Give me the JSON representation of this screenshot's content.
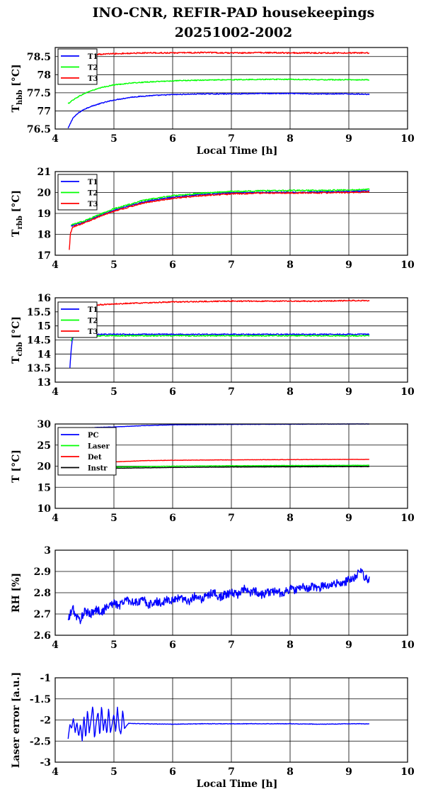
{
  "figure": {
    "title_line1": "INO-CNR, REFIR-PAD housekeepings",
    "title_line2": "20251002-2002"
  },
  "chart_data": [
    {
      "type": "line",
      "ylabel": "T",
      "ylabel_sub": "hbb",
      "ylabel_unit": "[°C]",
      "xlabel": "Local Time [h]",
      "xlim": [
        4,
        10
      ],
      "ylim": [
        76.5,
        78.75
      ],
      "xticks": [
        "4",
        "5",
        "6",
        "7",
        "8",
        "9",
        "10"
      ],
      "yticks": [
        "76.5",
        "77",
        "77.5",
        "78",
        "78.5"
      ],
      "ytick_values": [
        76.5,
        77,
        77.5,
        78,
        78.5
      ],
      "grid": true,
      "legend_position": "top-left",
      "series": [
        {
          "name": "T1",
          "color": "#0000ff",
          "x": [
            4.22,
            4.3,
            4.4,
            4.5,
            4.6,
            4.8,
            5.0,
            5.3,
            5.6,
            6.0,
            6.5,
            7.0,
            7.5,
            8.0,
            8.5,
            9.0,
            9.35
          ],
          "values": [
            76.52,
            76.8,
            76.95,
            77.05,
            77.12,
            77.22,
            77.3,
            77.38,
            77.42,
            77.45,
            77.47,
            77.47,
            77.48,
            77.48,
            77.47,
            77.47,
            77.46
          ],
          "noise": 0.012
        },
        {
          "name": "T2",
          "color": "#00ff00",
          "x": [
            4.22,
            4.3,
            4.4,
            4.5,
            4.6,
            4.8,
            5.0,
            5.3,
            5.6,
            6.0,
            6.5,
            7.0,
            7.5,
            8.0,
            8.5,
            9.0,
            9.35
          ],
          "values": [
            77.2,
            77.3,
            77.4,
            77.48,
            77.55,
            77.65,
            77.72,
            77.77,
            77.8,
            77.83,
            77.85,
            77.86,
            77.87,
            77.87,
            77.86,
            77.86,
            77.86
          ],
          "noise": 0.012
        },
        {
          "name": "T3",
          "color": "#ff0000",
          "x": [
            4.5,
            5.0,
            5.5,
            6.0,
            6.5,
            7.0,
            7.5,
            8.0,
            8.5,
            9.0,
            9.35
          ],
          "values": [
            78.55,
            78.58,
            78.6,
            78.6,
            78.61,
            78.6,
            78.61,
            78.6,
            78.6,
            78.6,
            78.6
          ],
          "noise": 0.018
        }
      ]
    },
    {
      "type": "line",
      "ylabel": "T",
      "ylabel_sub": "rbb",
      "ylabel_unit": "[°C]",
      "xlabel": "",
      "xlim": [
        4,
        10
      ],
      "ylim": [
        17,
        21
      ],
      "xticks": [
        "4",
        "5",
        "6",
        "7",
        "8",
        "9",
        "10"
      ],
      "yticks": [
        "17",
        "18",
        "19",
        "20",
        "21"
      ],
      "ytick_values": [
        17,
        18,
        19,
        20,
        21
      ],
      "grid": true,
      "legend_position": "top-left",
      "series": [
        {
          "name": "T1",
          "color": "#0000ff",
          "x": [
            4.27,
            4.5,
            4.8,
            5.0,
            5.5,
            6.0,
            6.5,
            7.0,
            7.5,
            8.0,
            8.5,
            9.0,
            9.35
          ],
          "values": [
            18.4,
            18.6,
            18.95,
            19.15,
            19.55,
            19.78,
            19.9,
            19.97,
            20.0,
            20.0,
            20.02,
            20.05,
            20.08
          ],
          "noise": 0.03
        },
        {
          "name": "T2",
          "color": "#00ff00",
          "x": [
            4.27,
            4.5,
            4.8,
            5.0,
            5.5,
            6.0,
            6.5,
            7.0,
            7.5,
            8.0,
            8.5,
            9.0,
            9.35
          ],
          "values": [
            18.45,
            18.65,
            19.0,
            19.22,
            19.62,
            19.85,
            19.97,
            20.05,
            20.08,
            20.1,
            20.1,
            20.12,
            20.15
          ],
          "noise": 0.03
        },
        {
          "name": "T3",
          "color": "#ff0000",
          "x": [
            4.24,
            4.26,
            4.3,
            4.5,
            4.8,
            5.0,
            5.5,
            6.0,
            6.5,
            7.0,
            7.5,
            8.0,
            8.5,
            9.0,
            9.35
          ],
          "values": [
            17.25,
            18.05,
            18.35,
            18.55,
            18.9,
            19.1,
            19.5,
            19.72,
            19.85,
            19.93,
            19.97,
            19.98,
            19.98,
            20.0,
            20.03
          ],
          "noise": 0.03
        }
      ]
    },
    {
      "type": "line",
      "ylabel": "T",
      "ylabel_sub": "cbb",
      "ylabel_unit": "[°C]",
      "xlabel": "",
      "xlim": [
        4,
        10
      ],
      "ylim": [
        13,
        16
      ],
      "xticks": [
        "4",
        "5",
        "6",
        "7",
        "8",
        "9",
        "10"
      ],
      "yticks": [
        "13",
        "13.5",
        "14",
        "14.5",
        "15",
        "15.5",
        "16"
      ],
      "ytick_values": [
        13,
        13.5,
        14,
        14.5,
        15,
        15.5,
        16
      ],
      "grid": true,
      "legend_position": "top-left",
      "series": [
        {
          "name": "T1",
          "color": "#0000ff",
          "x": [
            4.25,
            4.27,
            4.29,
            4.32,
            4.5,
            5.0,
            6.0,
            7.0,
            8.0,
            9.0,
            9.35
          ],
          "values": [
            13.5,
            14.1,
            14.5,
            14.68,
            14.7,
            14.7,
            14.7,
            14.7,
            14.7,
            14.7,
            14.7
          ],
          "noise": 0.02
        },
        {
          "name": "T2",
          "color": "#00ff00",
          "x": [
            4.27,
            4.3,
            4.4,
            5.0,
            6.0,
            7.0,
            8.0,
            9.0,
            9.35
          ],
          "values": [
            14.45,
            14.62,
            14.65,
            14.65,
            14.65,
            14.65,
            14.65,
            14.65,
            14.65
          ],
          "noise": 0.02
        },
        {
          "name": "T3",
          "color": "#ff0000",
          "x": [
            4.5,
            5.0,
            5.5,
            6.0,
            6.5,
            7.0,
            7.5,
            8.0,
            8.5,
            9.0,
            9.35
          ],
          "values": [
            15.72,
            15.78,
            15.82,
            15.85,
            15.87,
            15.88,
            15.88,
            15.88,
            15.88,
            15.9,
            15.9
          ],
          "noise": 0.02
        }
      ]
    },
    {
      "type": "line",
      "ylabel": "T [°C]",
      "ylabel_sub": "",
      "ylabel_unit": "",
      "xlabel": "",
      "xlim": [
        4,
        10
      ],
      "ylim": [
        10,
        30
      ],
      "xticks": [
        "4",
        "5",
        "6",
        "7",
        "8",
        "9",
        "10"
      ],
      "yticks": [
        "10",
        "15",
        "20",
        "25",
        "30"
      ],
      "ytick_values": [
        10,
        15,
        20,
        25,
        30
      ],
      "grid": true,
      "legend_position": "top-left",
      "series": [
        {
          "name": "PC",
          "color": "#0000ff",
          "x": [
            4.3,
            5.0,
            5.5,
            6.0,
            7.0,
            8.0,
            9.0,
            9.35
          ],
          "values": [
            29.0,
            29.3,
            29.6,
            29.8,
            29.9,
            29.95,
            30.0,
            30.0
          ],
          "noise": 0.04
        },
        {
          "name": "Laser",
          "color": "#00ff00",
          "x": [
            4.3,
            5.0,
            6.0,
            7.0,
            8.0,
            9.0,
            9.35
          ],
          "values": [
            19.5,
            19.8,
            20.0,
            20.1,
            20.15,
            20.2,
            20.2
          ],
          "noise": 0.04
        },
        {
          "name": "Det",
          "color": "#ff0000",
          "x": [
            4.3,
            4.6,
            5.0,
            5.5,
            6.0,
            7.0,
            8.0,
            9.0,
            9.35
          ],
          "values": [
            20.2,
            20.6,
            21.0,
            21.3,
            21.4,
            21.5,
            21.55,
            21.6,
            21.6
          ],
          "noise": 0.04
        },
        {
          "name": "Instr",
          "color": "#000000",
          "x": [
            4.3,
            5.0,
            6.0,
            7.0,
            8.0,
            9.0,
            9.35
          ],
          "values": [
            19.3,
            19.5,
            19.7,
            19.8,
            19.85,
            19.9,
            19.9
          ],
          "noise": 0.04
        }
      ]
    },
    {
      "type": "line",
      "ylabel": "RH [%]",
      "ylabel_sub": "",
      "ylabel_unit": "",
      "xlabel": "",
      "xlim": [
        4,
        10
      ],
      "ylim": [
        2.6,
        3.0
      ],
      "xticks": [
        "4",
        "5",
        "6",
        "7",
        "8",
        "9",
        "10"
      ],
      "yticks": [
        "2.6",
        "2.7",
        "2.8",
        "2.9",
        "3"
      ],
      "ytick_values": [
        2.6,
        2.7,
        2.8,
        2.9,
        3.0
      ],
      "grid": true,
      "legend_position": "none",
      "series": [
        {
          "name": "",
          "color": "#0000ff",
          "x": [
            4.22,
            4.3,
            4.35,
            4.42,
            4.5,
            4.6,
            4.7,
            4.8,
            4.9,
            5.0,
            5.1,
            5.2,
            5.3,
            5.4,
            5.5,
            5.6,
            5.7,
            5.8,
            5.9,
            6.0,
            6.1,
            6.2,
            6.3,
            6.4,
            6.5,
            6.6,
            6.7,
            6.8,
            6.9,
            7.0,
            7.1,
            7.2,
            7.3,
            7.4,
            7.5,
            7.6,
            7.7,
            7.8,
            7.9,
            8.0,
            8.1,
            8.2,
            8.3,
            8.4,
            8.5,
            8.6,
            8.7,
            8.8,
            8.9,
            9.0,
            9.1,
            9.2,
            9.25,
            9.3,
            9.35
          ],
          "values": [
            2.67,
            2.73,
            2.69,
            2.67,
            2.71,
            2.7,
            2.72,
            2.71,
            2.74,
            2.75,
            2.74,
            2.77,
            2.76,
            2.75,
            2.77,
            2.74,
            2.76,
            2.75,
            2.77,
            2.76,
            2.78,
            2.77,
            2.76,
            2.79,
            2.77,
            2.79,
            2.8,
            2.78,
            2.79,
            2.8,
            2.79,
            2.82,
            2.8,
            2.81,
            2.79,
            2.8,
            2.81,
            2.8,
            2.8,
            2.82,
            2.81,
            2.83,
            2.82,
            2.83,
            2.82,
            2.84,
            2.83,
            2.85,
            2.84,
            2.86,
            2.87,
            2.9,
            2.88,
            2.87,
            2.86
          ],
          "noise": 0.02
        }
      ]
    },
    {
      "type": "line",
      "ylabel": "Laser error [a.u.]",
      "ylabel_sub": "",
      "ylabel_unit": "",
      "xlabel": "Local Time [h]",
      "xlim": [
        4,
        10
      ],
      "ylim": [
        -3,
        -1
      ],
      "xticks": [
        "4",
        "5",
        "6",
        "7",
        "8",
        "9",
        "10"
      ],
      "yticks": [
        "-3",
        "-2.5",
        "-2",
        "-1.5",
        "-1"
      ],
      "ytick_values": [
        -3,
        -2.5,
        -2,
        -1.5,
        -1
      ],
      "grid": true,
      "legend_position": "none",
      "series": [
        {
          "name": "",
          "color": "#0000ff",
          "x": [
            4.22,
            4.25,
            4.28,
            4.31,
            4.34,
            4.37,
            4.4,
            4.43,
            4.46,
            4.49,
            4.52,
            4.55,
            4.58,
            4.61,
            4.64,
            4.67,
            4.7,
            4.73,
            4.76,
            4.79,
            4.82,
            4.85,
            4.88,
            4.91,
            4.94,
            4.97,
            5.0,
            5.03,
            5.06,
            5.09,
            5.12,
            5.15,
            5.18,
            5.25,
            5.5,
            6.0,
            6.5,
            7.0,
            7.5,
            8.0,
            8.5,
            9.0,
            9.35
          ],
          "values": [
            -2.45,
            -2.1,
            -2.2,
            -1.95,
            -2.3,
            -2.05,
            -2.4,
            -2.1,
            -2.5,
            -1.9,
            -2.45,
            -1.75,
            -2.3,
            -2.0,
            -1.65,
            -2.45,
            -2.05,
            -1.8,
            -2.4,
            -1.65,
            -2.25,
            -1.95,
            -2.35,
            -1.7,
            -2.3,
            -2.1,
            -1.85,
            -2.3,
            -1.7,
            -2.2,
            -2.35,
            -1.75,
            -2.2,
            -2.08,
            -2.09,
            -2.1,
            -2.09,
            -2.09,
            -2.09,
            -2.09,
            -2.1,
            -2.09,
            -2.09
          ],
          "noise": 0.006
        }
      ]
    }
  ]
}
